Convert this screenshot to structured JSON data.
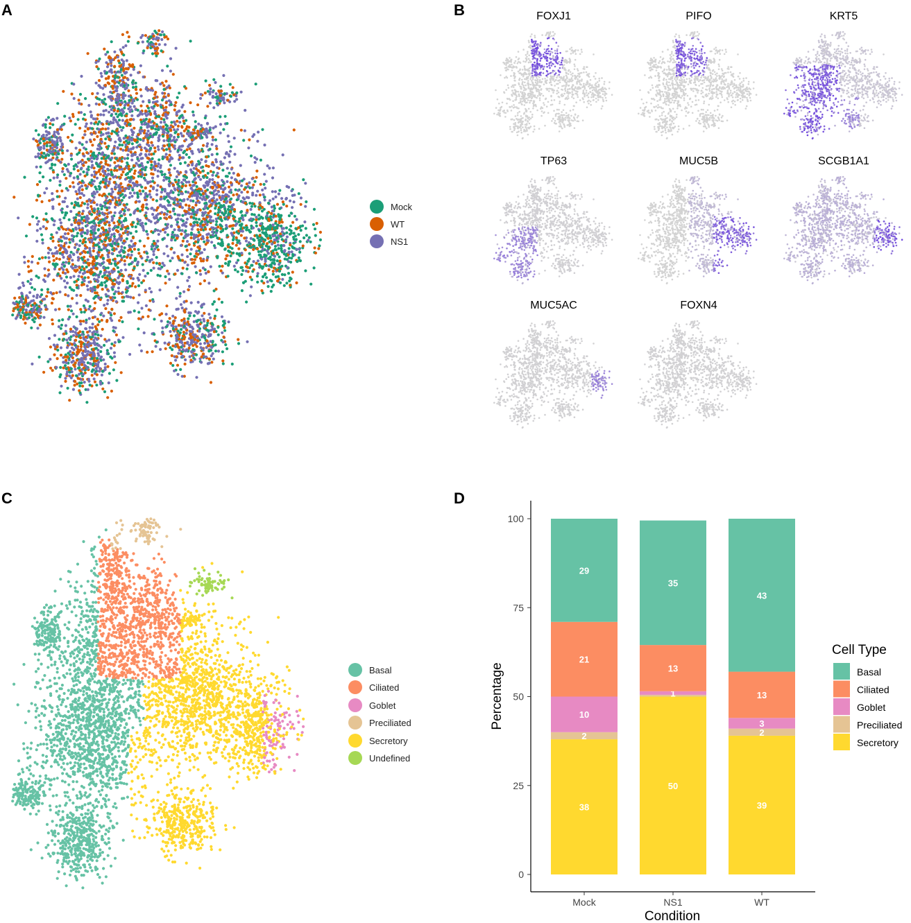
{
  "panels": {
    "a": "A",
    "b": "B",
    "c": "C",
    "d": "D"
  },
  "colors": {
    "mock": "#1b9e77",
    "wt": "#d95f02",
    "ns1": "#7570b3",
    "basal": "#66c2a5",
    "ciliated": "#fc8d62",
    "goblet": "#e78ac3",
    "preciliated": "#e5c494",
    "secretory": "#ffd92f",
    "undefined": "#a6d854",
    "expr_low": "#d3d3d3",
    "expr_high": "#5b2be0"
  },
  "panel_a": {
    "legend": [
      {
        "label": "Mock",
        "color": "#1b9e77"
      },
      {
        "label": "WT",
        "color": "#d95f02"
      },
      {
        "label": "NS1",
        "color": "#7570b3"
      }
    ]
  },
  "panel_b": {
    "genes": [
      "FOXJ1",
      "PIFO",
      "KRT5",
      "TP63",
      "MUC5B",
      "SCGB1A1",
      "MUC5AC",
      "FOXN4"
    ]
  },
  "panel_c": {
    "legend": [
      {
        "label": "Basal",
        "color": "#66c2a5"
      },
      {
        "label": "Ciliated",
        "color": "#fc8d62"
      },
      {
        "label": "Goblet",
        "color": "#e78ac3"
      },
      {
        "label": "Preciliated",
        "color": "#e5c494"
      },
      {
        "label": "Secretory",
        "color": "#ffd92f"
      },
      {
        "label": "Undefined",
        "color": "#a6d854"
      }
    ]
  },
  "chart_data": {
    "type": "bar",
    "stacked": true,
    "title": "",
    "xlabel": "Condition",
    "ylabel": "Percentage",
    "ylim": [
      0,
      100
    ],
    "yticks": [
      0,
      25,
      50,
      75,
      100
    ],
    "categories": [
      "Mock",
      "NS1",
      "WT"
    ],
    "series": [
      {
        "name": "Secretory",
        "color": "#ffd92f",
        "values": [
          38,
          50,
          39
        ]
      },
      {
        "name": "Preciliated",
        "color": "#e5c494",
        "values": [
          2,
          0.5,
          2
        ]
      },
      {
        "name": "Goblet",
        "color": "#e78ac3",
        "values": [
          10,
          1,
          3
        ]
      },
      {
        "name": "Ciliated",
        "color": "#fc8d62",
        "values": [
          21,
          13,
          13
        ]
      },
      {
        "name": "Basal",
        "color": "#66c2a5",
        "values": [
          29,
          35,
          43
        ]
      }
    ],
    "segment_labels": [
      [
        "38",
        "2",
        "10",
        "21",
        "29"
      ],
      [
        "50",
        "",
        "1",
        "13",
        "35"
      ],
      [
        "39",
        "2",
        "3",
        "13",
        "43"
      ]
    ],
    "legend_title": "Cell Type",
    "legend_order": [
      "Basal",
      "Ciliated",
      "Goblet",
      "Preciliated",
      "Secretory"
    ],
    "legend_position": "right"
  }
}
